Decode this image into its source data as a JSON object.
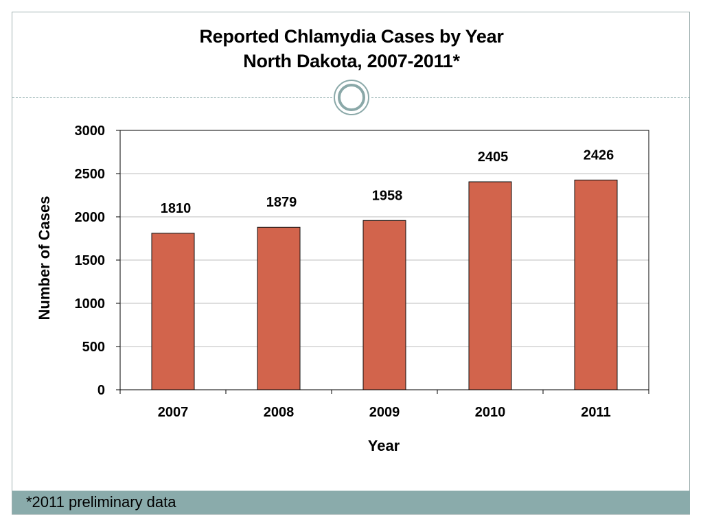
{
  "slide": {
    "title_line1": "Reported Chlamydia Cases by Year",
    "title_line2": "North Dakota, 2007-2011*",
    "footnote": "*2011 preliminary data"
  },
  "colors": {
    "bar": "#d2644c",
    "bar_stroke": "#111111",
    "grid": "#bdbdbd",
    "accent": "#8aabab"
  },
  "chart_data": {
    "type": "bar",
    "categories": [
      "2007",
      "2008",
      "2009",
      "2010",
      "2011"
    ],
    "values": [
      1810,
      1879,
      1958,
      2405,
      2426
    ],
    "data_labels": [
      "1810",
      "1879",
      "1958",
      "2405",
      "2426"
    ],
    "xlabel": "Year",
    "ylabel": "Number of Cases",
    "ylim": [
      0,
      3000
    ],
    "yticks": [
      0,
      500,
      1000,
      1500,
      2000,
      2500,
      3000
    ],
    "grid": true,
    "legend": "none"
  }
}
